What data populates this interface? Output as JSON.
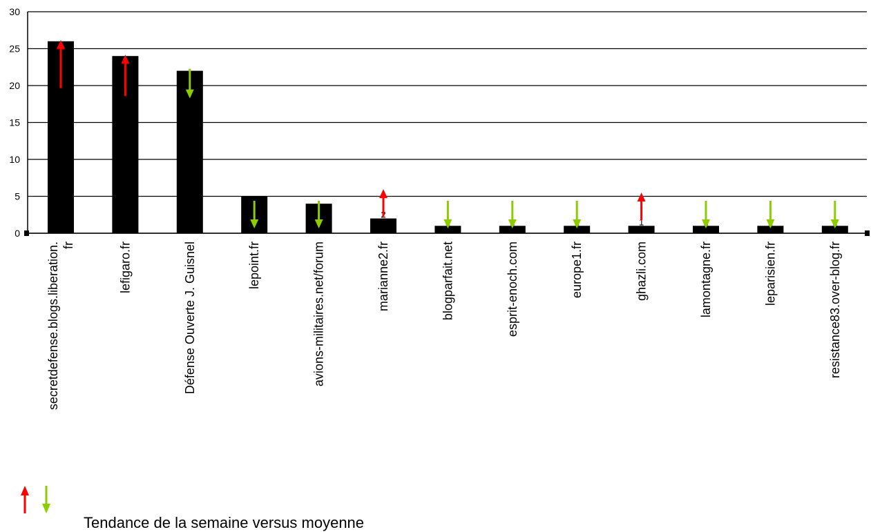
{
  "chart_data": {
    "type": "bar",
    "categories": [
      [
        "secretdefense.blogs.liberation.",
        "fr"
      ],
      [
        "lefigaro.fr"
      ],
      [
        "Défense Ouverte J. Guisnel"
      ],
      [
        "lepoint.fr"
      ],
      [
        "avions-militaires.net/forum"
      ],
      [
        "marianne2.fr"
      ],
      [
        "blogparfait.net"
      ],
      [
        "esprit-enoch.com"
      ],
      [
        "europe1.fr"
      ],
      [
        "ghazli.com"
      ],
      [
        "lamontagne.fr"
      ],
      [
        "leparisien.fr"
      ],
      [
        "resistance83.over-blog.fr"
      ]
    ],
    "values": [
      26,
      24,
      22,
      5,
      4,
      2,
      1,
      1,
      1,
      1,
      1,
      1,
      1
    ],
    "data_labels": [
      "",
      "",
      "",
      "",
      "",
      "2",
      "1",
      "1",
      "1",
      "1",
      "1",
      "1",
      "1"
    ],
    "trends": [
      "up",
      "up",
      "down",
      "down",
      "down",
      "up",
      "down",
      "down",
      "down",
      "up",
      "down",
      "down",
      "down"
    ],
    "ylim": [
      0,
      30
    ],
    "yticks": [
      0,
      5,
      10,
      15,
      20,
      25,
      30
    ],
    "grid": true,
    "legend_text": "Tendance de la semaine versus moyenne",
    "colors": {
      "bar": "#000000",
      "up": "#ff0000",
      "down": "#8ccc00",
      "grid": "#000000"
    }
  }
}
